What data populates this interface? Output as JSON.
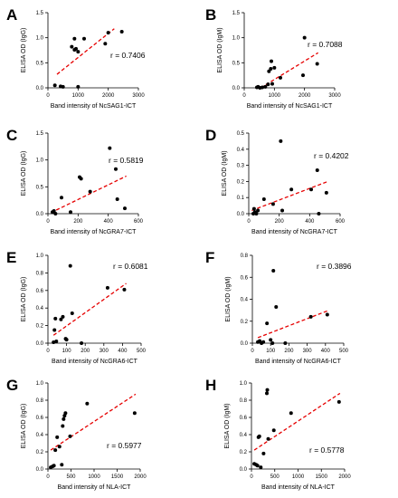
{
  "colors": {
    "point": "#000000",
    "trend": "#e60000",
    "axis": "#000000"
  },
  "chart_data": [
    {
      "panel": "A",
      "type": "scatter",
      "xlabel": "Band intensity of NcSAG1-ICT",
      "ylabel": "ELISA OD (IgG)",
      "r_label": "r = 0.7406",
      "xlim": [
        0,
        3000
      ],
      "ylim": [
        0,
        1.5
      ],
      "xticks": [
        0,
        1000,
        2000,
        3000
      ],
      "yticks": [
        0.0,
        0.5,
        1.0,
        1.5
      ],
      "xtick_labels": [
        "0",
        "1000",
        "2000",
        "3000"
      ],
      "ytick_labels": [
        "0.0",
        "0.5",
        "1.0",
        "1.5"
      ],
      "points": [
        [
          230,
          0.05
        ],
        [
          420,
          0.03
        ],
        [
          500,
          0.02
        ],
        [
          790,
          0.82
        ],
        [
          880,
          0.98
        ],
        [
          880,
          0.76
        ],
        [
          930,
          0.78
        ],
        [
          1000,
          0.72
        ],
        [
          1000,
          0.02
        ],
        [
          1200,
          0.98
        ],
        [
          1900,
          0.88
        ],
        [
          2000,
          1.1
        ],
        [
          2450,
          1.12
        ]
      ],
      "trend": [
        [
          300,
          0.27
        ],
        [
          2200,
          1.18
        ]
      ]
    },
    {
      "panel": "B",
      "type": "scatter",
      "xlabel": "Band intensity of NcSAG1-ICT",
      "ylabel": "ELISA OD (IgM)",
      "r_label": "r = 0.7088",
      "xlim": [
        0,
        3000
      ],
      "ylim": [
        0,
        1.5
      ],
      "xticks": [
        0,
        1000,
        2000,
        3000
      ],
      "yticks": [
        0.0,
        0.5,
        1.0,
        1.5
      ],
      "xtick_labels": [
        "0",
        "1000",
        "2000",
        "3000"
      ],
      "ytick_labels": [
        "0.0",
        "0.5",
        "1.0",
        "1.5"
      ],
      "points": [
        [
          420,
          0.01
        ],
        [
          460,
          0.02
        ],
        [
          520,
          0.0
        ],
        [
          600,
          0.01
        ],
        [
          700,
          0.02
        ],
        [
          790,
          0.07
        ],
        [
          820,
          0.33
        ],
        [
          880,
          0.38
        ],
        [
          900,
          0.53
        ],
        [
          930,
          0.08
        ],
        [
          1000,
          0.4
        ],
        [
          1200,
          0.2
        ],
        [
          1950,
          0.25
        ],
        [
          2000,
          1.0
        ],
        [
          2420,
          0.48
        ]
      ],
      "trend": [
        [
          550,
          0.0
        ],
        [
          2450,
          0.7
        ]
      ]
    },
    {
      "panel": "C",
      "type": "scatter",
      "xlabel": "Band intensity of NcGRA7-ICT",
      "ylabel": "ELISA OD (IgG)",
      "r_label": "r = 0.5819",
      "xlim": [
        0,
        600
      ],
      "ylim": [
        0,
        1.5
      ],
      "xticks": [
        0,
        200,
        400,
        600
      ],
      "yticks": [
        0.0,
        0.5,
        1.0,
        1.5
      ],
      "xtick_labels": [
        "0",
        "200",
        "400",
        "600"
      ],
      "ytick_labels": [
        "0.0",
        "0.5",
        "1.0",
        "1.5"
      ],
      "points": [
        [
          30,
          0.03
        ],
        [
          40,
          0.05
        ],
        [
          50,
          0.0
        ],
        [
          90,
          0.3
        ],
        [
          150,
          0.03
        ],
        [
          210,
          0.68
        ],
        [
          220,
          0.65
        ],
        [
          280,
          0.41
        ],
        [
          410,
          1.22
        ],
        [
          450,
          0.83
        ],
        [
          460,
          0.27
        ],
        [
          510,
          0.1
        ]
      ],
      "trend": [
        [
          20,
          0.02
        ],
        [
          520,
          0.7
        ]
      ]
    },
    {
      "panel": "D",
      "type": "scatter",
      "xlabel": "Band intensity of NcGRA7-ICT",
      "ylabel": "ELISA OD (IgM)",
      "r_label": "r = 0.4202",
      "xlim": [
        0,
        600
      ],
      "ylim": [
        0,
        0.5
      ],
      "xticks": [
        0,
        200,
        400,
        600
      ],
      "yticks": [
        0.0,
        0.1,
        0.2,
        0.3,
        0.4,
        0.5
      ],
      "xtick_labels": [
        "0",
        "200",
        "400",
        "600"
      ],
      "ytick_labels": [
        "0.0",
        "0.1",
        "0.2",
        "0.3",
        "0.4",
        "0.5"
      ],
      "points": [
        [
          30,
          0.0
        ],
        [
          35,
          0.03
        ],
        [
          40,
          0.01
        ],
        [
          50,
          0.0
        ],
        [
          60,
          0.02
        ],
        [
          100,
          0.09
        ],
        [
          160,
          0.06
        ],
        [
          210,
          0.45
        ],
        [
          220,
          0.02
        ],
        [
          280,
          0.15
        ],
        [
          410,
          0.15
        ],
        [
          450,
          0.27
        ],
        [
          460,
          0.0
        ],
        [
          510,
          0.13
        ]
      ],
      "trend": [
        [
          20,
          0.02
        ],
        [
          520,
          0.2
        ]
      ]
    },
    {
      "panel": "E",
      "type": "scatter",
      "xlabel": "Band intensity of NcGRA6-ICT",
      "ylabel": "ELISA OD (IgG)",
      "r_label": "r = 0.6081",
      "xlim": [
        0,
        500
      ],
      "ylim": [
        0,
        1.0
      ],
      "xticks": [
        0,
        100,
        200,
        300,
        400,
        500
      ],
      "yticks": [
        0.0,
        0.2,
        0.4,
        0.6,
        0.8,
        1.0
      ],
      "xtick_labels": [
        "0",
        "100",
        "200",
        "300",
        "400",
        "500"
      ],
      "ytick_labels": [
        "0.0",
        "0.2",
        "0.4",
        "0.6",
        "0.8",
        "1.0"
      ],
      "points": [
        [
          30,
          0.01
        ],
        [
          35,
          0.15
        ],
        [
          40,
          0.28
        ],
        [
          45,
          0.02
        ],
        [
          70,
          0.27
        ],
        [
          80,
          0.3
        ],
        [
          95,
          0.05
        ],
        [
          100,
          0.04
        ],
        [
          120,
          0.88
        ],
        [
          130,
          0.34
        ],
        [
          180,
          0.0
        ],
        [
          320,
          0.63
        ],
        [
          410,
          0.61
        ]
      ],
      "trend": [
        [
          30,
          0.09
        ],
        [
          420,
          0.68
        ]
      ]
    },
    {
      "panel": "F",
      "type": "scatter",
      "xlabel": "Band intensity of NcGRA6-ICT",
      "ylabel": "ELISA OD (IgM)",
      "r_label": "r = 0.3896",
      "xlim": [
        0,
        500
      ],
      "ylim": [
        0,
        0.8
      ],
      "xticks": [
        0,
        100,
        200,
        300,
        400,
        500
      ],
      "yticks": [
        0.0,
        0.2,
        0.4,
        0.6,
        0.8
      ],
      "xtick_labels": [
        "0",
        "100",
        "200",
        "300",
        "400",
        "500"
      ],
      "ytick_labels": [
        "0.0",
        "0.2",
        "0.4",
        "0.6",
        "0.8"
      ],
      "points": [
        [
          30,
          0.01
        ],
        [
          40,
          0.02
        ],
        [
          50,
          0.0
        ],
        [
          60,
          0.01
        ],
        [
          80,
          0.18
        ],
        [
          100,
          0.03
        ],
        [
          110,
          0.0
        ],
        [
          115,
          0.66
        ],
        [
          130,
          0.33
        ],
        [
          180,
          0.0
        ],
        [
          320,
          0.24
        ],
        [
          410,
          0.26
        ]
      ],
      "trend": [
        [
          30,
          0.05
        ],
        [
          420,
          0.3
        ]
      ]
    },
    {
      "panel": "G",
      "type": "scatter",
      "xlabel": "Band intensity of NLA-ICT",
      "ylabel": "ELISA OD (IgG)",
      "r_label": "r = 0.5977",
      "xlim": [
        0,
        2000
      ],
      "ylim": [
        0,
        1.0
      ],
      "xticks": [
        0,
        500,
        1000,
        1500,
        2000
      ],
      "yticks": [
        0.0,
        0.2,
        0.4,
        0.6,
        0.8,
        1.0
      ],
      "xtick_labels": [
        "0",
        "500",
        "1000",
        "1500",
        "2000"
      ],
      "ytick_labels": [
        "0.0",
        "0.2",
        "0.4",
        "0.6",
        "0.8",
        "1.0"
      ],
      "points": [
        [
          60,
          0.02
        ],
        [
          100,
          0.03
        ],
        [
          130,
          0.04
        ],
        [
          160,
          0.22
        ],
        [
          200,
          0.37
        ],
        [
          250,
          0.26
        ],
        [
          300,
          0.05
        ],
        [
          320,
          0.5
        ],
        [
          340,
          0.58
        ],
        [
          360,
          0.62
        ],
        [
          380,
          0.65
        ],
        [
          480,
          0.38
        ],
        [
          850,
          0.76
        ],
        [
          1880,
          0.65
        ]
      ],
      "trend": [
        [
          60,
          0.22
        ],
        [
          1900,
          0.87
        ]
      ]
    },
    {
      "panel": "H",
      "type": "scatter",
      "xlabel": "Band intensity of NLA-ICT",
      "ylabel": "ELISA OD (IgM)",
      "r_label": "r = 0.5778",
      "xlim": [
        0,
        2000
      ],
      "ylim": [
        0,
        1.0
      ],
      "xticks": [
        0,
        500,
        1000,
        1500,
        2000
      ],
      "yticks": [
        0.0,
        0.2,
        0.4,
        0.6,
        0.8,
        1.0
      ],
      "xtick_labels": [
        "0",
        "500",
        "1000",
        "1500",
        "2000"
      ],
      "ytick_labels": [
        "0.0",
        "0.2",
        "0.4",
        "0.6",
        "0.8",
        "1.0"
      ],
      "points": [
        [
          60,
          0.06
        ],
        [
          100,
          0.05
        ],
        [
          130,
          0.04
        ],
        [
          150,
          0.37
        ],
        [
          170,
          0.38
        ],
        [
          200,
          0.02
        ],
        [
          260,
          0.18
        ],
        [
          330,
          0.88
        ],
        [
          340,
          0.92
        ],
        [
          360,
          0.35
        ],
        [
          480,
          0.45
        ],
        [
          850,
          0.65
        ],
        [
          1880,
          0.78
        ]
      ],
      "trend": [
        [
          60,
          0.22
        ],
        [
          1900,
          0.88
        ]
      ]
    }
  ]
}
